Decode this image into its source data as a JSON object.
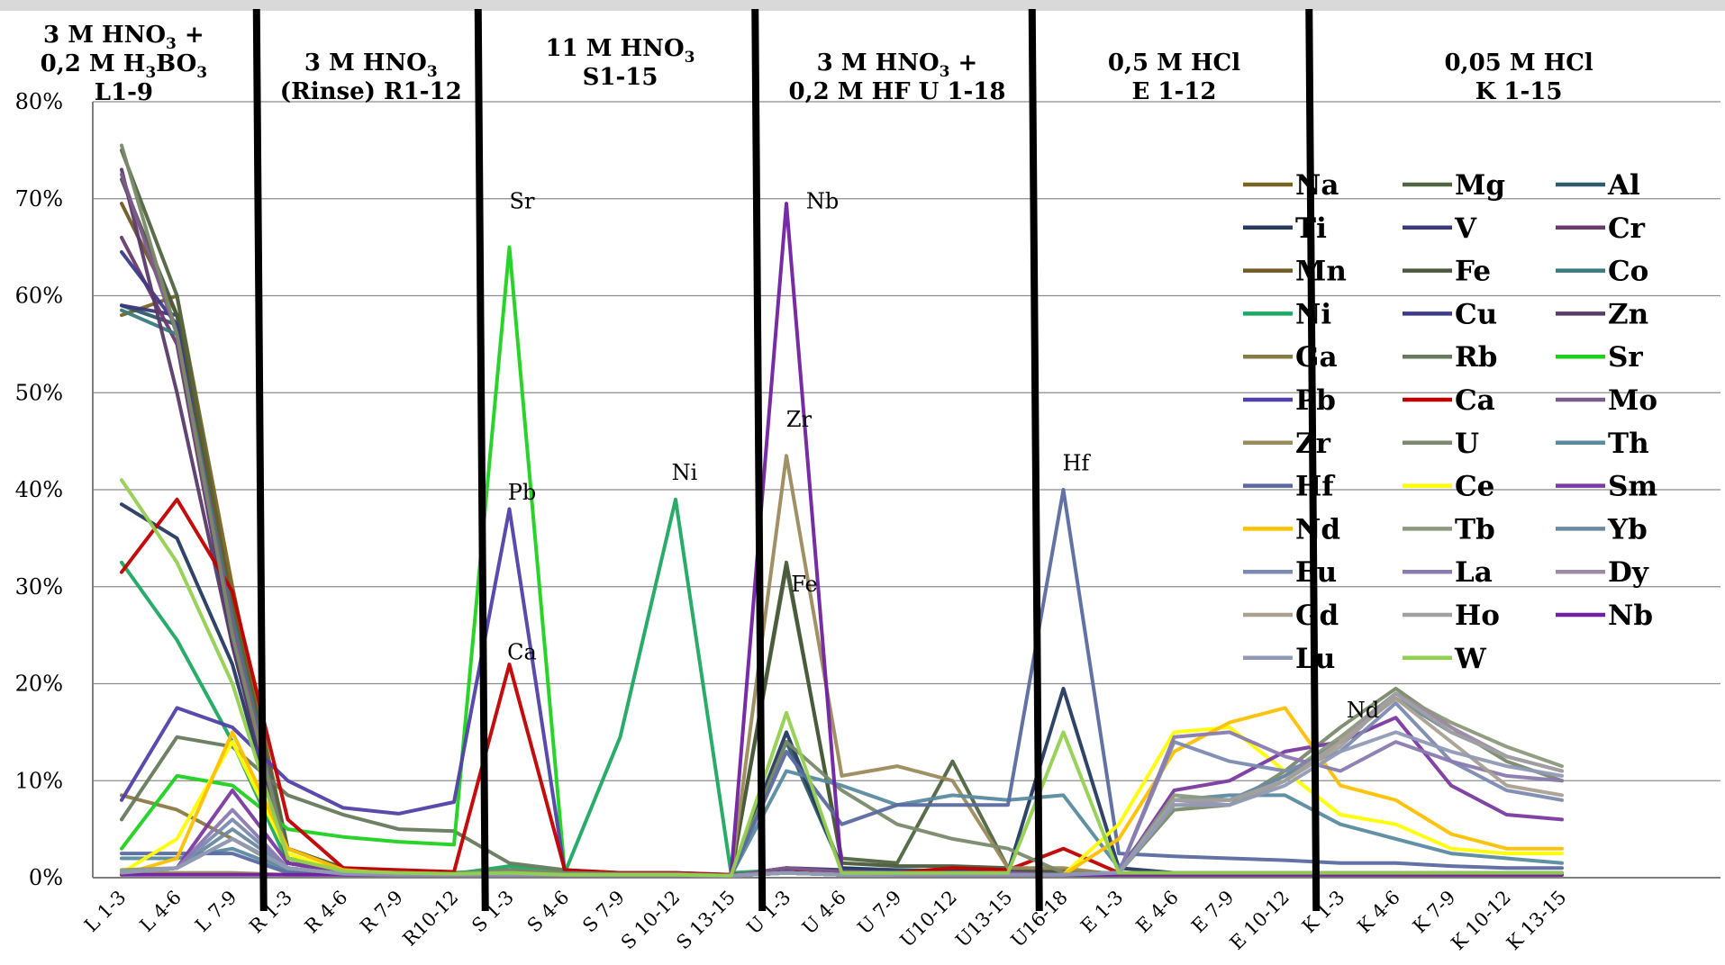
{
  "chart_data": {
    "type": "line",
    "categories": [
      "L 1-3",
      "L 4-6",
      "L 7-9",
      "R 1-3",
      "R 4-6",
      "R 7-9",
      "R10-12",
      "S 1-3",
      "S 4-6",
      "S 7-9",
      "S 10-12",
      "S 13-15",
      "U 1-3",
      "U 4-6",
      "U 7-9",
      "U10-12",
      "U13-15",
      "U16-18",
      "E 1-3",
      "E 4-6",
      "E 7-9",
      "E 10-12",
      "K 1-3",
      "K 4-6",
      "K 7-9",
      "K 10-12",
      "K 13-15"
    ],
    "y_tick_labels": [
      "0%",
      "10%",
      "20%",
      "30%",
      "40%",
      "50%",
      "60%",
      "70%",
      "80%"
    ],
    "ylim": [
      0,
      80
    ],
    "grid": true,
    "legend_position": "right",
    "segments": [
      {
        "lines": [
          {
            "t": "3 M HNO",
            "s": "3",
            "a": " +"
          },
          {
            "t": "0,2 M H",
            "s": "3",
            "a": "BO",
            "s2": "3"
          },
          {
            "t": "L1-9"
          }
        ]
      },
      {
        "lines": [
          {
            "t": "3 M HNO",
            "s": "3"
          },
          {
            "t": "(Rinse) R1-12"
          }
        ]
      },
      {
        "lines": [
          {
            "t": "11 M HNO",
            "s": "3"
          },
          {
            "t": "S1-15"
          }
        ]
      },
      {
        "lines": [
          {
            "t": "3 M HNO",
            "s": "3",
            "a": " +"
          },
          {
            "t": "0,2 M HF U 1-18"
          }
        ]
      },
      {
        "lines": [
          {
            "t": "0,5 M HCl"
          },
          {
            "t": "E 1-12"
          }
        ]
      },
      {
        "lines": [
          {
            "t": "0,05 M HCl"
          },
          {
            "t": "K 1-15"
          }
        ]
      }
    ],
    "annotations": [
      {
        "text": "Sr",
        "x": "S 1-3",
        "y": 69
      },
      {
        "text": "Pb",
        "x": "S 1-3",
        "y": 39
      },
      {
        "text": "Ca",
        "x": "S 1-3",
        "y": 22.5
      },
      {
        "text": "Ni",
        "x": "S 10-12",
        "y": 41
      },
      {
        "text": "Nb",
        "x": "U 1-3",
        "y": 69
      },
      {
        "text": "Zr",
        "x": "U 1-3",
        "y": 46.5
      },
      {
        "text": "Fe",
        "x": "U 1-3",
        "y": 29.5
      },
      {
        "text": "Hf",
        "x": "U16-18",
        "y": 42
      },
      {
        "text": "Nd",
        "x": "K 1-3",
        "y": 16.5
      }
    ],
    "series": [
      {
        "name": "Na",
        "color": "#7a6423",
        "values": [
          58,
          60,
          30,
          3,
          1,
          0.6,
          0.5,
          0.5,
          0.3,
          0.3,
          0.3,
          0.2,
          0.5,
          0.3,
          0.3,
          0.3,
          0.3,
          0.3,
          0.3,
          0.3,
          0.3,
          0.3,
          0.3,
          0.3,
          0.3,
          0.3,
          0.3
        ]
      },
      {
        "name": "Mg",
        "color": "#4f6640",
        "values": [
          75,
          60,
          28,
          3,
          1,
          0.6,
          0.5,
          0.8,
          0.5,
          0.4,
          0.4,
          0.2,
          32,
          2,
          1.5,
          12,
          1,
          0.8,
          0.4,
          0.4,
          0.4,
          0.4,
          0.4,
          0.4,
          0.4,
          0.4,
          0.4
        ]
      },
      {
        "name": "Al",
        "color": "#2e5a6b",
        "values": [
          59,
          57,
          24,
          1.5,
          0.6,
          0.5,
          0.4,
          0.8,
          0.4,
          0.4,
          0.4,
          0.2,
          14,
          1,
          0.8,
          0.7,
          0.7,
          0.5,
          0.4,
          0.4,
          0.4,
          0.4,
          0.4,
          0.4,
          0.4,
          0.4,
          0.4
        ]
      },
      {
        "name": "Ti",
        "color": "#243a5e",
        "values": [
          38.5,
          35,
          22,
          1.5,
          0.6,
          0.5,
          0.4,
          0.5,
          0.3,
          0.3,
          0.3,
          0.2,
          15,
          1,
          0.7,
          0.6,
          0.6,
          19.5,
          1,
          0.5,
          0.5,
          0.5,
          0.5,
          0.5,
          0.5,
          0.5,
          0.5
        ]
      },
      {
        "name": "V",
        "color": "#3a3a7a",
        "values": [
          59,
          58,
          26,
          2,
          0.8,
          0.5,
          0.4,
          0.5,
          0.3,
          0.3,
          0.3,
          0.2,
          1,
          0.8,
          0.7,
          0.7,
          0.6,
          0.4,
          0.3,
          0.3,
          0.3,
          0.3,
          0.3,
          0.3,
          0.3,
          0.3,
          0.3
        ]
      },
      {
        "name": "Cr",
        "color": "#6b3a6b",
        "values": [
          66,
          55,
          24,
          2,
          0.7,
          0.5,
          0.4,
          0.5,
          0.3,
          0.3,
          0.3,
          0.2,
          1,
          0.6,
          0.5,
          0.5,
          0.5,
          0.3,
          0.3,
          0.3,
          0.3,
          0.3,
          0.3,
          0.3,
          0.3,
          0.3,
          0.3
        ]
      },
      {
        "name": "Mn",
        "color": "#6e5a22",
        "values": [
          69.5,
          58,
          28,
          2,
          0.7,
          0.5,
          0.4,
          0.6,
          0.3,
          0.3,
          0.3,
          0.2,
          0.8,
          0.6,
          0.5,
          0.5,
          0.5,
          0.3,
          0.3,
          0.3,
          0.3,
          0.3,
          0.3,
          0.3,
          0.3,
          0.3,
          0.3
        ]
      },
      {
        "name": "Fe",
        "color": "#4a5a3a",
        "values": [
          72,
          58,
          26,
          2,
          0.7,
          0.5,
          0.4,
          0.5,
          0.3,
          0.3,
          0.3,
          0.2,
          32.5,
          1.5,
          1.2,
          1.2,
          1,
          0.5,
          0.4,
          0.4,
          0.4,
          0.4,
          0.4,
          0.4,
          0.4,
          0.4,
          0.4
        ]
      },
      {
        "name": "Co",
        "color": "#3a7a80",
        "values": [
          58.5,
          56,
          27,
          2,
          0.7,
          0.5,
          0.4,
          0.5,
          0.3,
          0.3,
          0.3,
          0.2,
          0.8,
          0.5,
          0.5,
          0.5,
          0.5,
          0.3,
          0.3,
          0.3,
          0.3,
          0.3,
          0.3,
          0.3,
          0.3,
          0.3,
          0.3
        ]
      },
      {
        "name": "Ni",
        "color": "#1ea862",
        "values": [
          32.5,
          24.5,
          14,
          1.5,
          0.7,
          0.5,
          0.4,
          1.2,
          0.5,
          14.5,
          39,
          0.5,
          0.8,
          0.5,
          0.5,
          0.5,
          0.5,
          0.3,
          0.3,
          0.3,
          0.3,
          0.3,
          0.3,
          0.3,
          0.3,
          0.3,
          0.3
        ]
      },
      {
        "name": "Cu",
        "color": "#3d3a8a",
        "values": [
          64.5,
          57,
          24,
          1.5,
          0.6,
          0.5,
          0.4,
          0.5,
          0.3,
          0.3,
          0.3,
          0.2,
          0.8,
          0.5,
          0.5,
          0.5,
          0.5,
          0.3,
          0.3,
          0.3,
          0.3,
          0.3,
          0.3,
          0.3,
          0.3,
          0.3,
          0.3
        ]
      },
      {
        "name": "Zn",
        "color": "#5a3a6a",
        "values": [
          73,
          50,
          24,
          1.5,
          0.6,
          0.5,
          0.4,
          0.5,
          0.3,
          0.3,
          0.3,
          0.2,
          0.8,
          0.5,
          0.5,
          0.5,
          0.5,
          0.3,
          0.3,
          0.3,
          0.3,
          0.3,
          0.3,
          0.3,
          0.3,
          0.3,
          0.3
        ]
      },
      {
        "name": "Ga",
        "color": "#8c7a45",
        "values": [
          8.5,
          7,
          4,
          0.8,
          0.4,
          0.3,
          0.3,
          0.4,
          0.3,
          0.3,
          0.3,
          0.2,
          0.5,
          0.3,
          0.3,
          0.3,
          0.3,
          0.3,
          0.3,
          0.3,
          0.3,
          0.3,
          0.3,
          0.3,
          0.3,
          0.3,
          0.3
        ]
      },
      {
        "name": "Rb",
        "color": "#667a5c",
        "values": [
          6,
          14.5,
          13.5,
          8.5,
          6.5,
          5,
          4.8,
          1.5,
          0.8,
          0.5,
          0.5,
          0.3,
          0.5,
          0.3,
          0.3,
          0.3,
          0.3,
          0.3,
          0.3,
          0.3,
          0.3,
          0.3,
          0.3,
          0.3,
          0.3,
          0.3,
          0.3
        ]
      },
      {
        "name": "Sr",
        "color": "#1fd11f",
        "values": [
          3,
          10.5,
          9.5,
          5,
          4.2,
          3.7,
          3.4,
          65,
          0.5,
          0.4,
          0.4,
          0.2,
          0.5,
          0.3,
          0.3,
          0.3,
          0.3,
          0.3,
          0.3,
          0.3,
          0.3,
          0.3,
          0.3,
          0.3,
          0.3,
          0.3,
          0.3
        ]
      },
      {
        "name": "Pb",
        "color": "#5040a8",
        "values": [
          8,
          17.5,
          15.5,
          10,
          7.2,
          6.6,
          7.8,
          38,
          0.5,
          0.4,
          0.4,
          0.2,
          0.5,
          0.3,
          0.3,
          0.3,
          0.3,
          0.3,
          0.3,
          0.3,
          0.3,
          0.3,
          0.3,
          0.3,
          0.3,
          0.3,
          0.3
        ]
      },
      {
        "name": "Ca",
        "color": "#c00000",
        "values": [
          31.5,
          39,
          29.5,
          6,
          1,
          0.8,
          0.6,
          22,
          0.8,
          0.5,
          0.5,
          0.3,
          0.5,
          0.5,
          0.5,
          1,
          0.8,
          3,
          0.5,
          0.3,
          0.3,
          0.3,
          0.3,
          0.3,
          0.3,
          0.3,
          0.3
        ]
      },
      {
        "name": "Mo",
        "color": "#7d5a8c",
        "values": [
          72.5,
          56,
          26,
          2,
          0.7,
          0.5,
          0.4,
          0.5,
          0.3,
          0.3,
          0.3,
          0.2,
          1,
          0.6,
          0.5,
          0.5,
          0.5,
          0.3,
          0.3,
          0.3,
          0.3,
          0.3,
          0.3,
          0.3,
          0.3,
          0.3,
          0.3
        ]
      },
      {
        "name": "Zr",
        "color": "#9c8a5c",
        "values": [
          0.5,
          0.5,
          0.5,
          0.3,
          0.3,
          0.3,
          0.3,
          0.3,
          0.3,
          0.3,
          0.3,
          0.2,
          43.5,
          10.5,
          11.5,
          10,
          1,
          1,
          0.3,
          0.3,
          0.3,
          0.3,
          0.3,
          0.3,
          0.3,
          0.3,
          0.3
        ]
      },
      {
        "name": "U",
        "color": "#7a8a6a",
        "values": [
          75.5,
          56,
          25,
          2,
          0.7,
          0.5,
          0.4,
          0.8,
          0.5,
          0.4,
          0.4,
          0.2,
          14,
          9,
          5.5,
          4,
          3,
          0.5,
          0.5,
          7,
          7.5,
          11,
          15.5,
          19.5,
          15.5,
          12,
          10
        ]
      },
      {
        "name": "Th",
        "color": "#5a8aa0",
        "values": [
          2,
          2,
          3,
          0.8,
          0.4,
          0.3,
          0.3,
          0.4,
          0.3,
          0.3,
          0.3,
          0.2,
          11,
          9.5,
          7.5,
          8.5,
          8,
          8.5,
          1,
          8,
          8.5,
          8.5,
          5.5,
          4,
          2.5,
          2,
          1.5
        ]
      },
      {
        "name": "Hf",
        "color": "#5a6aa0",
        "values": [
          2.5,
          2.5,
          2.5,
          0.5,
          0.3,
          0.3,
          0.3,
          0.3,
          0.3,
          0.3,
          0.3,
          0.2,
          13,
          5.5,
          7.5,
          7.5,
          7.5,
          40,
          2.5,
          2.2,
          2,
          1.8,
          1.5,
          1.5,
          1.2,
          1,
          1
        ]
      },
      {
        "name": "Ce",
        "color": "#ffff00",
        "values": [
          0.5,
          4,
          14,
          2.5,
          0.5,
          0.3,
          0.3,
          0.3,
          0.3,
          0.3,
          0.3,
          0.2,
          0.5,
          0.3,
          0.3,
          0.3,
          0.3,
          0.3,
          5.5,
          15,
          15.5,
          11,
          6.5,
          5.5,
          3,
          2.5,
          2.5
        ]
      },
      {
        "name": "Sm",
        "color": "#7a3aa0",
        "values": [
          0.5,
          1,
          9,
          1.5,
          0.5,
          0.3,
          0.3,
          0.3,
          0.3,
          0.3,
          0.3,
          0.2,
          0.5,
          0.3,
          0.3,
          0.3,
          0.3,
          0.3,
          0.5,
          9,
          10,
          13,
          14,
          16.5,
          9.5,
          6.5,
          6
        ]
      },
      {
        "name": "Nd",
        "color": "#ffc000",
        "values": [
          0.3,
          2,
          15,
          3,
          0.8,
          0.4,
          0.3,
          0.3,
          0.3,
          0.3,
          0.3,
          0.2,
          0.5,
          0.3,
          0.3,
          0.3,
          0.3,
          0.3,
          4,
          13,
          16,
          17.5,
          9.5,
          8,
          4.5,
          3,
          3
        ]
      },
      {
        "name": "Tb",
        "color": "#8a9a7a",
        "values": [
          0.8,
          1,
          4,
          1,
          0.4,
          0.3,
          0.3,
          0.3,
          0.3,
          0.3,
          0.3,
          0.2,
          0.5,
          0.3,
          0.3,
          0.3,
          0.3,
          0.3,
          0.5,
          8.5,
          8,
          10.5,
          14.5,
          19,
          16,
          13.5,
          11.5
        ]
      },
      {
        "name": "Yb",
        "color": "#6a8aa0",
        "values": [
          0.5,
          1,
          5,
          1,
          0.4,
          0.3,
          0.3,
          0.3,
          0.3,
          0.3,
          0.3,
          0.2,
          0.5,
          0.3,
          0.3,
          0.3,
          0.3,
          0.3,
          0.5,
          8,
          8,
          10.5,
          14,
          18.5,
          15,
          12.5,
          11
        ]
      },
      {
        "name": "Eu",
        "color": "#7a8ab0",
        "values": [
          0.5,
          1,
          6,
          1,
          0.4,
          0.3,
          0.3,
          0.3,
          0.3,
          0.3,
          0.3,
          0.2,
          0.5,
          0.3,
          0.3,
          0.3,
          0.3,
          0.3,
          0.5,
          14,
          12,
          11,
          13,
          18,
          12,
          9,
          8
        ]
      },
      {
        "name": "La",
        "color": "#8a7ab0",
        "values": [
          0.5,
          1,
          7,
          1,
          0.4,
          0.3,
          0.3,
          0.3,
          0.3,
          0.3,
          0.3,
          0.2,
          0.5,
          0.3,
          0.3,
          0.3,
          0.3,
          0.3,
          0.5,
          14.5,
          15,
          12.5,
          11,
          14,
          12,
          10.5,
          10
        ]
      },
      {
        "name": "Dy",
        "color": "#a08aaa",
        "values": [
          0.5,
          1,
          4,
          1,
          0.4,
          0.3,
          0.3,
          0.3,
          0.3,
          0.3,
          0.3,
          0.2,
          0.5,
          0.3,
          0.3,
          0.3,
          0.3,
          0.3,
          0.5,
          8,
          7.5,
          10,
          14,
          19,
          15.5,
          12.5,
          11
        ]
      },
      {
        "name": "Gd",
        "color": "#aaa090",
        "values": [
          0.5,
          1,
          4,
          1,
          0.4,
          0.3,
          0.3,
          0.3,
          0.3,
          0.3,
          0.3,
          0.2,
          0.5,
          0.3,
          0.3,
          0.3,
          0.3,
          0.3,
          0.5,
          7.5,
          7.5,
          10,
          14,
          18.5,
          14,
          9.5,
          8.5
        ]
      },
      {
        "name": "Ho",
        "color": "#a0a0a0",
        "values": [
          0.5,
          1,
          4,
          1,
          0.4,
          0.3,
          0.3,
          0.3,
          0.3,
          0.3,
          0.3,
          0.2,
          0.5,
          0.3,
          0.3,
          0.3,
          0.3,
          0.3,
          0.5,
          8,
          8,
          10,
          13.5,
          19,
          15,
          12.5,
          11
        ]
      },
      {
        "name": "Nb",
        "color": "#7020a0",
        "values": [
          0.3,
          0.3,
          0.3,
          0.3,
          0.3,
          0.3,
          0.3,
          0.3,
          0.3,
          0.3,
          0.3,
          0.2,
          69.5,
          0.5,
          0.3,
          0.3,
          0.3,
          0.3,
          0.3,
          0.3,
          0.3,
          0.3,
          0.3,
          0.3,
          0.3,
          0.3,
          0.3
        ]
      },
      {
        "name": "Lu",
        "color": "#909ab5",
        "values": [
          0.5,
          1,
          4,
          1,
          0.4,
          0.3,
          0.3,
          0.3,
          0.3,
          0.3,
          0.3,
          0.2,
          0.5,
          0.3,
          0.3,
          0.3,
          0.3,
          0.3,
          0.5,
          7.5,
          7.5,
          9.5,
          13,
          15,
          13,
          11.5,
          10.5
        ]
      },
      {
        "name": "W",
        "color": "#92d050",
        "values": [
          41,
          32.5,
          20,
          2,
          0.7,
          0.5,
          0.4,
          0.5,
          0.3,
          0.3,
          0.3,
          0.2,
          17,
          0.5,
          0.5,
          0.5,
          0.5,
          15,
          0.5,
          0.5,
          0.5,
          0.5,
          0.5,
          0.5,
          0.5,
          0.5,
          0.5
        ]
      }
    ]
  }
}
